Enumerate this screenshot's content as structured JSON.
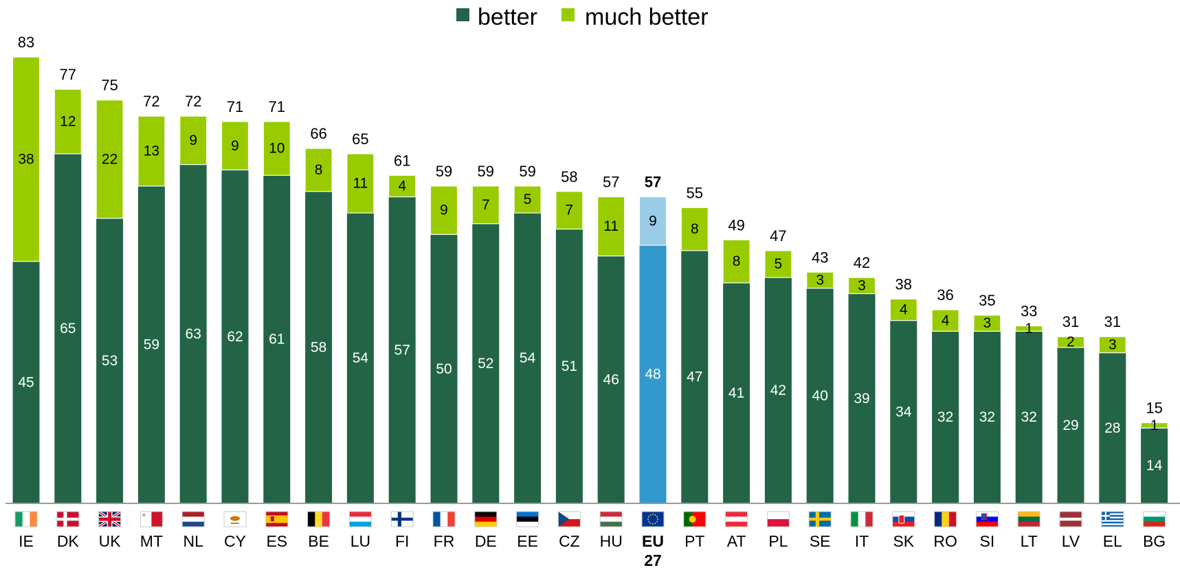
{
  "chart_data": {
    "type": "bar",
    "stacked": true,
    "title": "",
    "xlabel": "",
    "ylabel": "",
    "ylim": [
      0,
      83
    ],
    "grid": false,
    "legend_position": "top-center",
    "categories": [
      "IE",
      "DK",
      "UK",
      "MT",
      "NL",
      "CY",
      "ES",
      "BE",
      "LU",
      "FI",
      "FR",
      "DE",
      "EE",
      "CZ",
      "HU",
      "EU 27",
      "PT",
      "AT",
      "PL",
      "SE",
      "IT",
      "SK",
      "RO",
      "SI",
      "LT",
      "LV",
      "EL",
      "BG"
    ],
    "highlight_category": "EU 27",
    "series": [
      {
        "name": "better",
        "color": "#236447",
        "highlight_color": "#3399cc",
        "values": [
          45,
          65,
          53,
          59,
          63,
          62,
          61,
          58,
          54,
          57,
          50,
          52,
          54,
          51,
          46,
          48,
          47,
          41,
          42,
          40,
          39,
          34,
          32,
          32,
          32,
          29,
          28,
          14
        ]
      },
      {
        "name": "much better",
        "color": "#99cc00",
        "highlight_color": "#99cce6",
        "values": [
          38,
          12,
          22,
          13,
          9,
          9,
          10,
          8,
          11,
          4,
          9,
          7,
          5,
          7,
          11,
          9,
          8,
          8,
          5,
          3,
          3,
          4,
          4,
          3,
          1,
          2,
          3,
          1
        ]
      }
    ],
    "totals": [
      83,
      77,
      75,
      72,
      72,
      71,
      71,
      66,
      65,
      61,
      59,
      59,
      59,
      58,
      57,
      57,
      55,
      49,
      47,
      43,
      42,
      38,
      36,
      35,
      33,
      31,
      31,
      15
    ],
    "flag_icons": [
      "ireland-flag-icon",
      "denmark-flag-icon",
      "uk-flag-icon",
      "malta-flag-icon",
      "netherlands-flag-icon",
      "cyprus-flag-icon",
      "spain-flag-icon",
      "belgium-flag-icon",
      "luxembourg-flag-icon",
      "finland-flag-icon",
      "france-flag-icon",
      "germany-flag-icon",
      "estonia-flag-icon",
      "czech-flag-icon",
      "hungary-flag-icon",
      "eu-flag-icon",
      "portugal-flag-icon",
      "austria-flag-icon",
      "poland-flag-icon",
      "sweden-flag-icon",
      "italy-flag-icon",
      "slovakia-flag-icon",
      "romania-flag-icon",
      "slovenia-flag-icon",
      "lithuania-flag-icon",
      "latvia-flag-icon",
      "greece-flag-icon",
      "bulgaria-flag-icon"
    ]
  }
}
